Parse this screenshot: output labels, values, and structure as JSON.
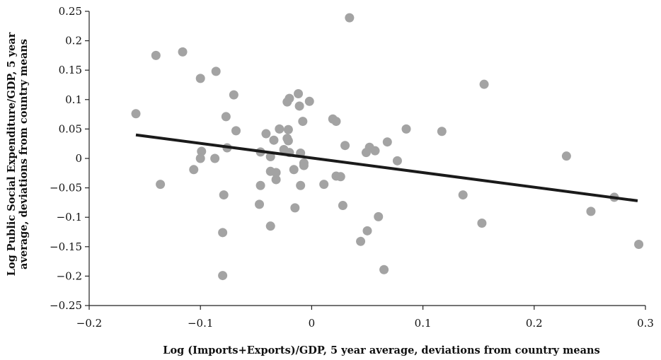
{
  "chart_data": {
    "type": "scatter",
    "title": "",
    "xlabel": "Log (Imports+Exports)/GDP, 5 year average, deviations from country means",
    "ylabel_lines": [
      "Log Public Social Expenditure/GDP, 5 year",
      "average, deviations from country means"
    ],
    "xlim": [
      -0.2,
      0.3
    ],
    "ylim": [
      -0.25,
      0.25
    ],
    "x_ticks": [
      -0.2,
      -0.1,
      0,
      0.1,
      0.2,
      0.3
    ],
    "x_tick_labels": [
      "−0.2",
      "−0.1",
      "0",
      "0.1",
      "0.2",
      "0.3"
    ],
    "y_ticks": [
      0.25,
      0.2,
      0.15,
      0.1,
      0.05,
      0,
      -0.05,
      -0.1,
      -0.15,
      -0.2,
      -0.25
    ],
    "y_tick_labels": [
      "0.25",
      "0.2",
      "0.15",
      "0.1",
      "0.05",
      "0",
      "−0.05",
      "−0.1",
      "−0.15",
      "−0.2",
      "−0.25"
    ],
    "grid": false,
    "legend": "none",
    "marker_color": "#a3a3a3",
    "trend_color": "#1a1a1a",
    "trendline": {
      "x": [
        -0.158,
        0.293
      ],
      "y": [
        0.04,
        -0.072
      ]
    },
    "points": [
      {
        "x": 0.034,
        "y": 0.239
      },
      {
        "x": -0.116,
        "y": 0.181
      },
      {
        "x": -0.14,
        "y": 0.175
      },
      {
        "x": -0.086,
        "y": 0.148
      },
      {
        "x": -0.1,
        "y": 0.136
      },
      {
        "x": 0.155,
        "y": 0.126
      },
      {
        "x": -0.07,
        "y": 0.108
      },
      {
        "x": -0.012,
        "y": 0.11
      },
      {
        "x": -0.02,
        "y": 0.102
      },
      {
        "x": -0.002,
        "y": 0.097
      },
      {
        "x": -0.022,
        "y": 0.096
      },
      {
        "x": -0.011,
        "y": 0.089
      },
      {
        "x": -0.158,
        "y": 0.076
      },
      {
        "x": -0.077,
        "y": 0.071
      },
      {
        "x": 0.019,
        "y": 0.067
      },
      {
        "x": 0.022,
        "y": 0.063
      },
      {
        "x": -0.008,
        "y": 0.063
      },
      {
        "x": -0.029,
        "y": 0.05
      },
      {
        "x": -0.021,
        "y": 0.049
      },
      {
        "x": 0.085,
        "y": 0.05
      },
      {
        "x": -0.068,
        "y": 0.047
      },
      {
        "x": 0.117,
        "y": 0.046
      },
      {
        "x": -0.041,
        "y": 0.042
      },
      {
        "x": -0.022,
        "y": 0.034
      },
      {
        "x": -0.034,
        "y": 0.031
      },
      {
        "x": -0.021,
        "y": 0.03
      },
      {
        "x": 0.068,
        "y": 0.028
      },
      {
        "x": 0.03,
        "y": 0.022
      },
      {
        "x": -0.076,
        "y": 0.018
      },
      {
        "x": 0.052,
        "y": 0.019
      },
      {
        "x": -0.025,
        "y": 0.015
      },
      {
        "x": 0.057,
        "y": 0.013
      },
      {
        "x": -0.099,
        "y": 0.012
      },
      {
        "x": -0.046,
        "y": 0.011
      },
      {
        "x": -0.02,
        "y": 0.01
      },
      {
        "x": 0.049,
        "y": 0.01
      },
      {
        "x": -0.01,
        "y": 0.009
      },
      {
        "x": -0.037,
        "y": 0.003
      },
      {
        "x": 0.229,
        "y": 0.004
      },
      {
        "x": -0.1,
        "y": 0.0
      },
      {
        "x": -0.087,
        "y": 0.0
      },
      {
        "x": 0.077,
        "y": -0.004
      },
      {
        "x": -0.007,
        "y": -0.008
      },
      {
        "x": -0.007,
        "y": -0.012
      },
      {
        "x": -0.016,
        "y": -0.019
      },
      {
        "x": -0.106,
        "y": -0.019
      },
      {
        "x": -0.037,
        "y": -0.022
      },
      {
        "x": -0.032,
        "y": -0.024
      },
      {
        "x": 0.022,
        "y": -0.03
      },
      {
        "x": 0.026,
        "y": -0.031
      },
      {
        "x": -0.032,
        "y": -0.036
      },
      {
        "x": -0.136,
        "y": -0.044
      },
      {
        "x": 0.011,
        "y": -0.044
      },
      {
        "x": -0.046,
        "y": -0.046
      },
      {
        "x": -0.01,
        "y": -0.046
      },
      {
        "x": -0.079,
        "y": -0.062
      },
      {
        "x": 0.136,
        "y": -0.062
      },
      {
        "x": 0.272,
        "y": -0.066
      },
      {
        "x": -0.047,
        "y": -0.078
      },
      {
        "x": 0.028,
        "y": -0.08
      },
      {
        "x": -0.015,
        "y": -0.084
      },
      {
        "x": 0.251,
        "y": -0.09
      },
      {
        "x": 0.06,
        "y": -0.099
      },
      {
        "x": 0.153,
        "y": -0.11
      },
      {
        "x": -0.037,
        "y": -0.115
      },
      {
        "x": 0.05,
        "y": -0.123
      },
      {
        "x": -0.08,
        "y": -0.126
      },
      {
        "x": 0.044,
        "y": -0.141
      },
      {
        "x": 0.294,
        "y": -0.146
      },
      {
        "x": 0.065,
        "y": -0.189
      },
      {
        "x": -0.08,
        "y": -0.199
      }
    ]
  }
}
